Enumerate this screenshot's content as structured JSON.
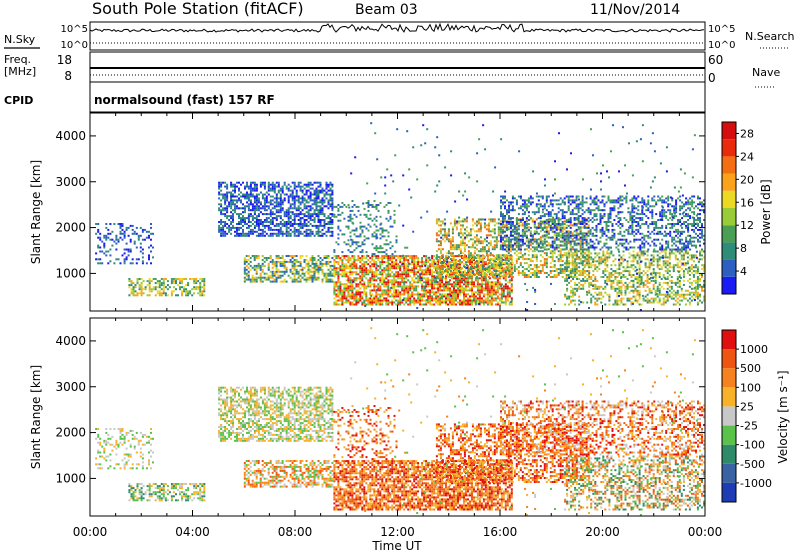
{
  "header": {
    "station": "South Pole Station (fitACF)",
    "beam": "Beam 03",
    "date": "11/Nov/2014"
  },
  "strip": {
    "left_labels": [
      "N.Sky",
      "Freq.",
      "[MHz]",
      "CPID"
    ],
    "right_labels": [
      "N.Search",
      "Nave"
    ],
    "ticks_top_left": [
      "10^5",
      "10^0"
    ],
    "ticks_top_right": [
      "10^5",
      "10^0"
    ],
    "ticks_mid_left": [
      "18",
      "8"
    ],
    "ticks_mid_right": [
      "60",
      "0"
    ],
    "cpid_text": "normalsound (fast) 157 RF"
  },
  "chart_data": [
    {
      "type": "heatmap",
      "title": "",
      "ylabel": "Slant Range [km]",
      "xlabel": "",
      "ylim": [
        180,
        4500
      ],
      "xlim": [
        "00:00",
        "24:00"
      ],
      "yticks": [
        "1000",
        "2000",
        "3000",
        "4000"
      ],
      "colorbar": {
        "label": "Power [dB]",
        "ticks": [
          "4",
          "8",
          "12",
          "16",
          "20",
          "24",
          "28"
        ],
        "range": [
          0,
          30
        ],
        "colors": [
          "#1b1bf5",
          "#2c5fc0",
          "#2f8c78",
          "#4a9f55",
          "#9acb39",
          "#ecd923",
          "#f9a21a",
          "#f46f12",
          "#ea2a0c",
          "#d60d0d"
        ]
      }
    },
    {
      "type": "heatmap",
      "title": "",
      "ylabel": "Slant Range [km]",
      "xlabel": "Time UT",
      "ylim": [
        180,
        4500
      ],
      "xlim": [
        "00:00",
        "24:00"
      ],
      "xticks": [
        "00:00",
        "04:00",
        "08:00",
        "12:00",
        "16:00",
        "20:00",
        "00:00"
      ],
      "yticks": [
        "1000",
        "2000",
        "3000",
        "4000"
      ],
      "colorbar": {
        "label": "Velocity [m s⁻¹]",
        "ticks": [
          "1000",
          "500",
          "100",
          "25",
          "-25",
          "-100",
          "-500",
          "-1000"
        ],
        "colors": [
          "#1f3cb4",
          "#3a63a3",
          "#2f8a6a",
          "#5ac14a",
          "#c8c8c8",
          "#f7b22a",
          "#f5821e",
          "#ef5512",
          "#e01010"
        ]
      }
    }
  ]
}
